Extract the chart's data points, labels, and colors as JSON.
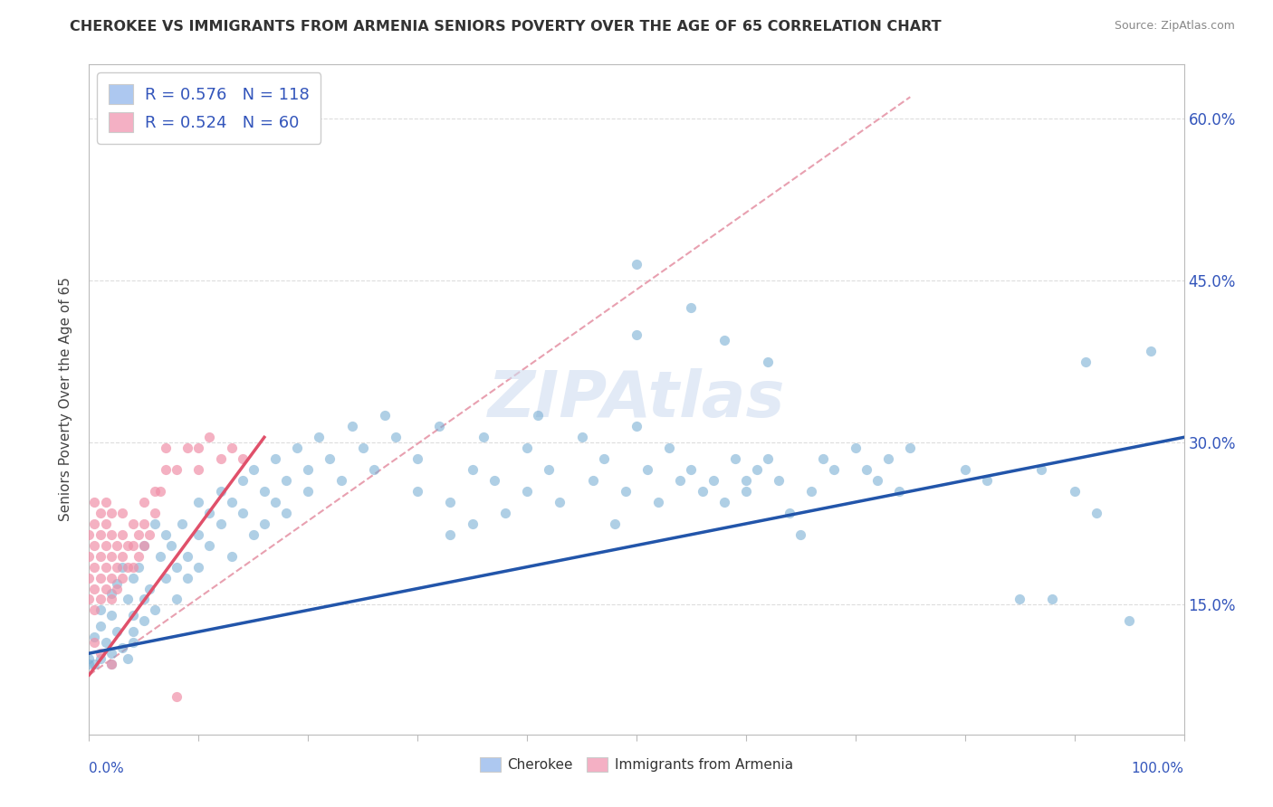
{
  "title": "CHEROKEE VS IMMIGRANTS FROM ARMENIA SENIORS POVERTY OVER THE AGE OF 65 CORRELATION CHART",
  "source": "Source: ZipAtlas.com",
  "ylabel": "Seniors Poverty Over the Age of 65",
  "xlim": [
    0.0,
    1.0
  ],
  "ylim": [
    0.03,
    0.65
  ],
  "yticks": [
    0.15,
    0.3,
    0.45,
    0.6
  ],
  "ytick_labels": [
    "15.0%",
    "30.0%",
    "45.0%",
    "60.0%"
  ],
  "legend_entries": [
    {
      "label": "R = 0.576   N = 118",
      "color": "#adc8f0"
    },
    {
      "label": "R = 0.524   N = 60",
      "color": "#f4b0c4"
    }
  ],
  "cherokee_color": "#7bafd4",
  "armenia_color": "#f090a8",
  "trendline_cherokee_color": "#2255aa",
  "trendline_armenia_color": "#e0506a",
  "trendline_armenia_dash_color": "#e8a0b0",
  "watermark": "ZIPAtlas",
  "background_color": "#ffffff",
  "cherokee_trendline": [
    [
      0.0,
      0.105
    ],
    [
      1.0,
      0.305
    ]
  ],
  "armenia_trendline_full": [
    [
      0.0,
      0.085
    ],
    [
      0.75,
      0.62
    ]
  ],
  "armenia_trendline_solid": [
    [
      0.0,
      0.085
    ],
    [
      0.16,
      0.305
    ]
  ],
  "cherokee_points": [
    [
      0.0,
      0.1
    ],
    [
      0.0,
      0.095
    ],
    [
      0.005,
      0.12
    ],
    [
      0.005,
      0.095
    ],
    [
      0.01,
      0.13
    ],
    [
      0.01,
      0.1
    ],
    [
      0.01,
      0.145
    ],
    [
      0.015,
      0.115
    ],
    [
      0.02,
      0.14
    ],
    [
      0.02,
      0.105
    ],
    [
      0.02,
      0.16
    ],
    [
      0.02,
      0.095
    ],
    [
      0.025,
      0.17
    ],
    [
      0.025,
      0.125
    ],
    [
      0.03,
      0.185
    ],
    [
      0.03,
      0.11
    ],
    [
      0.035,
      0.1
    ],
    [
      0.035,
      0.155
    ],
    [
      0.04,
      0.14
    ],
    [
      0.04,
      0.175
    ],
    [
      0.04,
      0.125
    ],
    [
      0.04,
      0.115
    ],
    [
      0.045,
      0.185
    ],
    [
      0.05,
      0.155
    ],
    [
      0.05,
      0.135
    ],
    [
      0.05,
      0.205
    ],
    [
      0.055,
      0.165
    ],
    [
      0.06,
      0.225
    ],
    [
      0.06,
      0.145
    ],
    [
      0.065,
      0.195
    ],
    [
      0.07,
      0.175
    ],
    [
      0.07,
      0.215
    ],
    [
      0.075,
      0.205
    ],
    [
      0.08,
      0.185
    ],
    [
      0.08,
      0.155
    ],
    [
      0.085,
      0.225
    ],
    [
      0.09,
      0.195
    ],
    [
      0.09,
      0.175
    ],
    [
      0.1,
      0.215
    ],
    [
      0.1,
      0.245
    ],
    [
      0.1,
      0.185
    ],
    [
      0.11,
      0.235
    ],
    [
      0.11,
      0.205
    ],
    [
      0.12,
      0.255
    ],
    [
      0.12,
      0.225
    ],
    [
      0.13,
      0.245
    ],
    [
      0.13,
      0.195
    ],
    [
      0.14,
      0.265
    ],
    [
      0.14,
      0.235
    ],
    [
      0.15,
      0.215
    ],
    [
      0.15,
      0.275
    ],
    [
      0.16,
      0.225
    ],
    [
      0.16,
      0.255
    ],
    [
      0.17,
      0.285
    ],
    [
      0.17,
      0.245
    ],
    [
      0.18,
      0.265
    ],
    [
      0.18,
      0.235
    ],
    [
      0.19,
      0.295
    ],
    [
      0.2,
      0.275
    ],
    [
      0.2,
      0.255
    ],
    [
      0.21,
      0.305
    ],
    [
      0.22,
      0.285
    ],
    [
      0.23,
      0.265
    ],
    [
      0.24,
      0.315
    ],
    [
      0.25,
      0.295
    ],
    [
      0.26,
      0.275
    ],
    [
      0.27,
      0.325
    ],
    [
      0.28,
      0.305
    ],
    [
      0.3,
      0.255
    ],
    [
      0.3,
      0.285
    ],
    [
      0.32,
      0.315
    ],
    [
      0.33,
      0.215
    ],
    [
      0.33,
      0.245
    ],
    [
      0.35,
      0.275
    ],
    [
      0.35,
      0.225
    ],
    [
      0.36,
      0.305
    ],
    [
      0.37,
      0.265
    ],
    [
      0.38,
      0.235
    ],
    [
      0.4,
      0.295
    ],
    [
      0.4,
      0.255
    ],
    [
      0.41,
      0.325
    ],
    [
      0.42,
      0.275
    ],
    [
      0.43,
      0.245
    ],
    [
      0.45,
      0.305
    ],
    [
      0.46,
      0.265
    ],
    [
      0.47,
      0.285
    ],
    [
      0.48,
      0.225
    ],
    [
      0.49,
      0.255
    ],
    [
      0.5,
      0.315
    ],
    [
      0.5,
      0.465
    ],
    [
      0.51,
      0.275
    ],
    [
      0.52,
      0.245
    ],
    [
      0.53,
      0.295
    ],
    [
      0.54,
      0.265
    ],
    [
      0.55,
      0.275
    ],
    [
      0.56,
      0.255
    ],
    [
      0.57,
      0.265
    ],
    [
      0.58,
      0.245
    ],
    [
      0.59,
      0.285
    ],
    [
      0.6,
      0.255
    ],
    [
      0.6,
      0.265
    ],
    [
      0.61,
      0.275
    ],
    [
      0.62,
      0.285
    ],
    [
      0.63,
      0.265
    ],
    [
      0.64,
      0.235
    ],
    [
      0.65,
      0.215
    ],
    [
      0.66,
      0.255
    ],
    [
      0.67,
      0.285
    ],
    [
      0.68,
      0.275
    ],
    [
      0.7,
      0.295
    ],
    [
      0.71,
      0.275
    ],
    [
      0.72,
      0.265
    ],
    [
      0.73,
      0.285
    ],
    [
      0.74,
      0.255
    ],
    [
      0.75,
      0.295
    ],
    [
      0.8,
      0.275
    ],
    [
      0.82,
      0.265
    ],
    [
      0.85,
      0.155
    ],
    [
      0.87,
      0.275
    ],
    [
      0.88,
      0.155
    ],
    [
      0.9,
      0.255
    ],
    [
      0.91,
      0.375
    ],
    [
      0.92,
      0.235
    ],
    [
      0.95,
      0.135
    ],
    [
      0.97,
      0.385
    ],
    [
      0.5,
      0.4
    ],
    [
      0.55,
      0.425
    ],
    [
      0.58,
      0.395
    ],
    [
      0.62,
      0.375
    ]
  ],
  "armenia_points": [
    [
      0.0,
      0.155
    ],
    [
      0.0,
      0.175
    ],
    [
      0.0,
      0.195
    ],
    [
      0.0,
      0.215
    ],
    [
      0.005,
      0.145
    ],
    [
      0.005,
      0.165
    ],
    [
      0.005,
      0.185
    ],
    [
      0.005,
      0.205
    ],
    [
      0.005,
      0.225
    ],
    [
      0.005,
      0.245
    ],
    [
      0.01,
      0.155
    ],
    [
      0.01,
      0.175
    ],
    [
      0.01,
      0.195
    ],
    [
      0.01,
      0.215
    ],
    [
      0.01,
      0.235
    ],
    [
      0.015,
      0.165
    ],
    [
      0.015,
      0.185
    ],
    [
      0.015,
      0.205
    ],
    [
      0.015,
      0.225
    ],
    [
      0.015,
      0.245
    ],
    [
      0.02,
      0.155
    ],
    [
      0.02,
      0.175
    ],
    [
      0.02,
      0.195
    ],
    [
      0.02,
      0.215
    ],
    [
      0.02,
      0.235
    ],
    [
      0.025,
      0.165
    ],
    [
      0.025,
      0.185
    ],
    [
      0.025,
      0.205
    ],
    [
      0.03,
      0.175
    ],
    [
      0.03,
      0.195
    ],
    [
      0.03,
      0.215
    ],
    [
      0.03,
      0.235
    ],
    [
      0.035,
      0.185
    ],
    [
      0.035,
      0.205
    ],
    [
      0.04,
      0.185
    ],
    [
      0.04,
      0.205
    ],
    [
      0.04,
      0.225
    ],
    [
      0.045,
      0.195
    ],
    [
      0.045,
      0.215
    ],
    [
      0.05,
      0.205
    ],
    [
      0.05,
      0.225
    ],
    [
      0.05,
      0.245
    ],
    [
      0.055,
      0.215
    ],
    [
      0.06,
      0.235
    ],
    [
      0.06,
      0.255
    ],
    [
      0.065,
      0.255
    ],
    [
      0.07,
      0.275
    ],
    [
      0.07,
      0.295
    ],
    [
      0.08,
      0.275
    ],
    [
      0.09,
      0.295
    ],
    [
      0.1,
      0.295
    ],
    [
      0.1,
      0.275
    ],
    [
      0.11,
      0.305
    ],
    [
      0.12,
      0.285
    ],
    [
      0.13,
      0.295
    ],
    [
      0.14,
      0.285
    ],
    [
      0.005,
      0.115
    ],
    [
      0.01,
      0.105
    ],
    [
      0.02,
      0.095
    ],
    [
      0.08,
      0.065
    ]
  ]
}
